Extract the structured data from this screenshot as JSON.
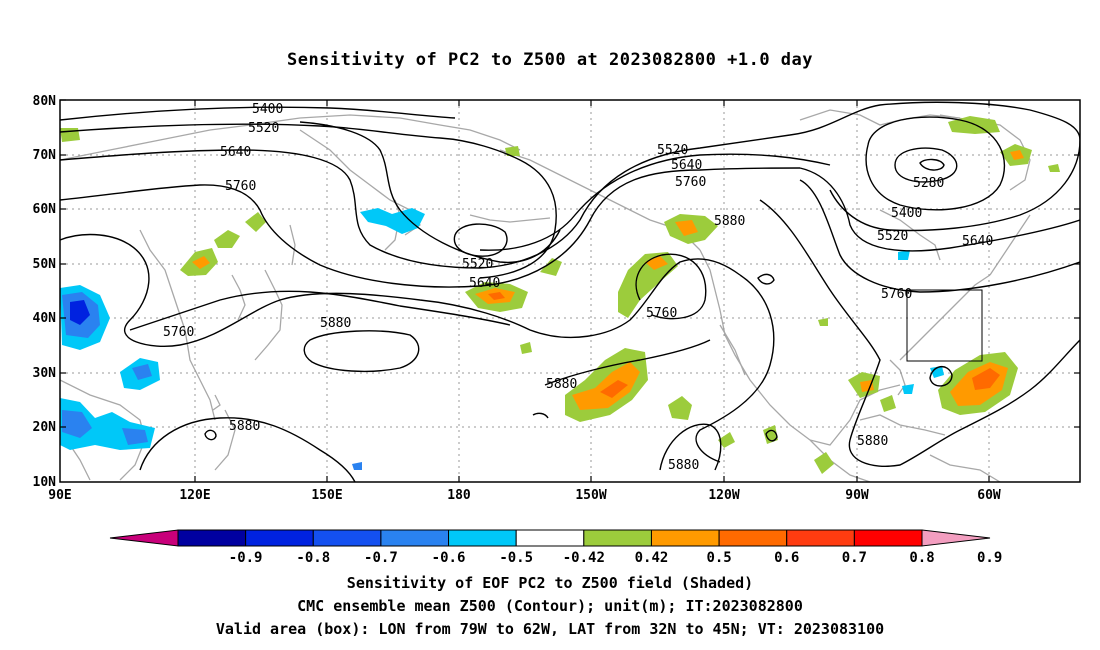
{
  "title": "Sensitivity of PC2 to Z500 at 2023082800 +1.0 day",
  "map": {
    "lon_range": [
      "90E",
      "30W"
    ],
    "lat_range": [
      "10N",
      "80N"
    ],
    "lat_labels": [
      "80N",
      "70N",
      "60N",
      "50N",
      "40N",
      "30N",
      "20N",
      "10N"
    ],
    "lon_labels": [
      "90E",
      "120E",
      "150E",
      "180",
      "150W",
      "120W",
      "90W",
      "60W"
    ]
  },
  "contour_labels": [
    {
      "text": "5400"
    },
    {
      "text": "5520"
    },
    {
      "text": "5640"
    },
    {
      "text": "5760"
    },
    {
      "text": "5520"
    },
    {
      "text": "5640"
    },
    {
      "text": "5760"
    },
    {
      "text": "5880"
    },
    {
      "text": "5280"
    },
    {
      "text": "5400"
    },
    {
      "text": "5520"
    },
    {
      "text": "5640"
    },
    {
      "text": "5760"
    },
    {
      "text": "5520"
    },
    {
      "text": "5640"
    },
    {
      "text": "5760"
    },
    {
      "text": "5880"
    },
    {
      "text": "5760"
    },
    {
      "text": "5880"
    },
    {
      "text": "5880"
    },
    {
      "text": "5880"
    },
    {
      "text": "5880"
    }
  ],
  "colorbar": {
    "labels": [
      "-0.9",
      "-0.8",
      "-0.7",
      "-0.6",
      "-0.5",
      "-0.42",
      "0.42",
      "0.5",
      "0.6",
      "0.7",
      "0.8",
      "0.9"
    ],
    "colors": [
      "#c8007a",
      "#0000a0",
      "#0022e0",
      "#1450f0",
      "#2a82f0",
      "#00c8f8",
      "#ffffff",
      "#9ccc3c",
      "#ff9a00",
      "#ff6a00",
      "#ff3c10",
      "#ff0000",
      "#f39ec0"
    ]
  },
  "colors": {
    "positive_low": "#9ccc3c",
    "positive_mid": "#ff9a00",
    "positive_high": "#ff6a00",
    "negative_low": "#00c8f8",
    "negative_mid": "#2a82f0",
    "negative_high": "#0022e0"
  },
  "footer": {
    "line1": "Sensitivity of EOF PC2 to Z500 field (Shaded)",
    "line2": "CMC ensemble mean Z500 (Contour); unit(m); IT:2023082800",
    "line3": "Valid area (box): LON from 79W to 62W, LAT from 32N to 45N; VT: 2023083100"
  }
}
